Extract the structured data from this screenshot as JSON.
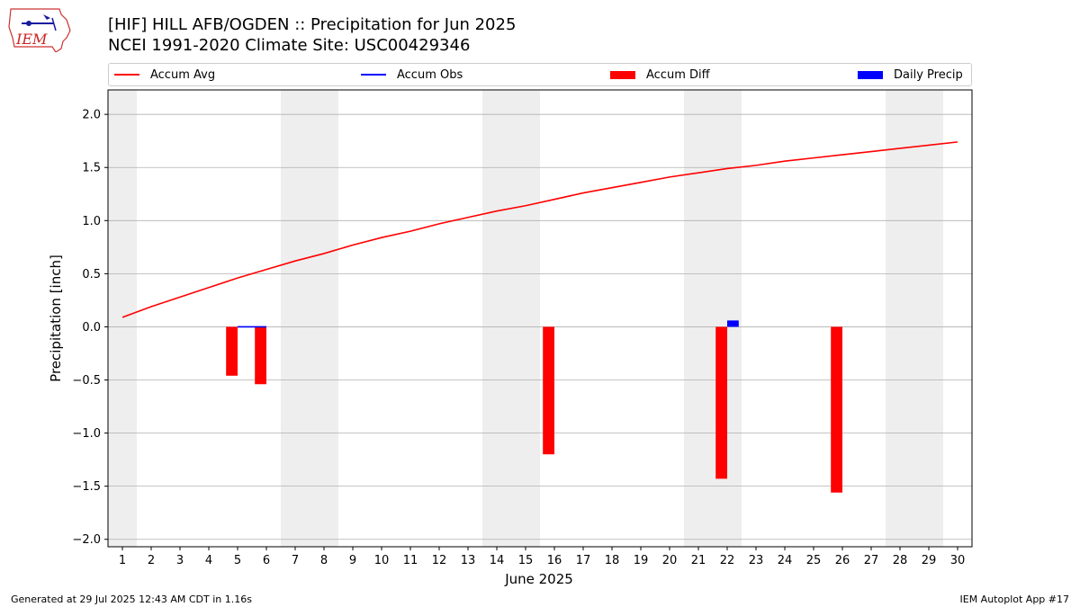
{
  "header": {
    "title_line1": "[HIF] HILL AFB/OGDEN :: Precipitation for Jun 2025",
    "title_line2": "NCEI 1991-2020 Climate Site: USC00429346"
  },
  "logo": {
    "text": "IEM"
  },
  "footer": {
    "left": "Generated at 29 Jul 2025 12:43 AM CDT in 1.16s",
    "right": "IEM Autoplot App #17"
  },
  "colors": {
    "avg": "#ff0000",
    "obs": "#0000ff",
    "diff": "#ff0000",
    "daily": "#0000ff",
    "weekend": "#eeeeee",
    "grid": "#b0b0b0"
  },
  "chart_data": {
    "type": "bar",
    "xlabel": "June 2025",
    "ylabel": "Precipitation [inch]",
    "xlim": [
      0.5,
      30.5
    ],
    "ylim": [
      -2.07,
      2.23
    ],
    "y_ticks": [
      -2.0,
      -1.5,
      -1.0,
      -0.5,
      0.0,
      0.5,
      1.0,
      1.5,
      2.0
    ],
    "y_tick_labels": [
      "−2.0",
      "−1.5",
      "−1.0",
      "−0.5",
      "0.0",
      "0.5",
      "1.0",
      "1.5",
      "2.0"
    ],
    "x": [
      1,
      2,
      3,
      4,
      5,
      6,
      7,
      8,
      9,
      10,
      11,
      12,
      13,
      14,
      15,
      16,
      17,
      18,
      19,
      20,
      21,
      22,
      23,
      24,
      25,
      26,
      27,
      28,
      29,
      30
    ],
    "x_tick_labels": [
      "1",
      "2",
      "3",
      "4",
      "5",
      "6",
      "7",
      "8",
      "9",
      "10",
      "11",
      "12",
      "13",
      "14",
      "15",
      "16",
      "17",
      "18",
      "19",
      "20",
      "21",
      "22",
      "23",
      "24",
      "25",
      "26",
      "27",
      "28",
      "29",
      "30"
    ],
    "grid": "y",
    "legend_position": "top",
    "weekend_days": [
      1,
      7,
      8,
      14,
      15,
      21,
      22,
      28,
      29
    ],
    "legend": [
      "Accum Avg",
      "Accum Obs",
      "Accum Diff",
      "Daily Precip"
    ],
    "series": [
      {
        "name": "Accum Avg",
        "type": "line",
        "x": [
          1,
          2,
          3,
          4,
          5,
          6,
          7,
          8,
          9,
          10,
          11,
          12,
          13,
          14,
          15,
          16,
          17,
          18,
          19,
          20,
          21,
          22,
          23,
          24,
          25,
          26,
          27,
          28,
          29,
          30
        ],
        "values": [
          0.09,
          0.19,
          0.28,
          0.37,
          0.46,
          0.54,
          0.62,
          0.69,
          0.77,
          0.84,
          0.9,
          0.97,
          1.03,
          1.09,
          1.14,
          1.2,
          1.26,
          1.31,
          1.36,
          1.41,
          1.45,
          1.49,
          1.52,
          1.56,
          1.59,
          1.62,
          1.65,
          1.68,
          1.71,
          1.74
        ]
      },
      {
        "name": "Accum Obs",
        "type": "line",
        "x": [
          5,
          6
        ],
        "values": [
          0.0,
          0.0
        ]
      },
      {
        "name": "Accum Diff",
        "type": "bar",
        "x": [
          5,
          6,
          16,
          22,
          26
        ],
        "values": [
          -0.46,
          -0.54,
          -1.2,
          -1.43,
          -1.56
        ]
      },
      {
        "name": "Daily Precip",
        "type": "bar",
        "x": [
          22
        ],
        "values": [
          0.06
        ]
      }
    ]
  }
}
